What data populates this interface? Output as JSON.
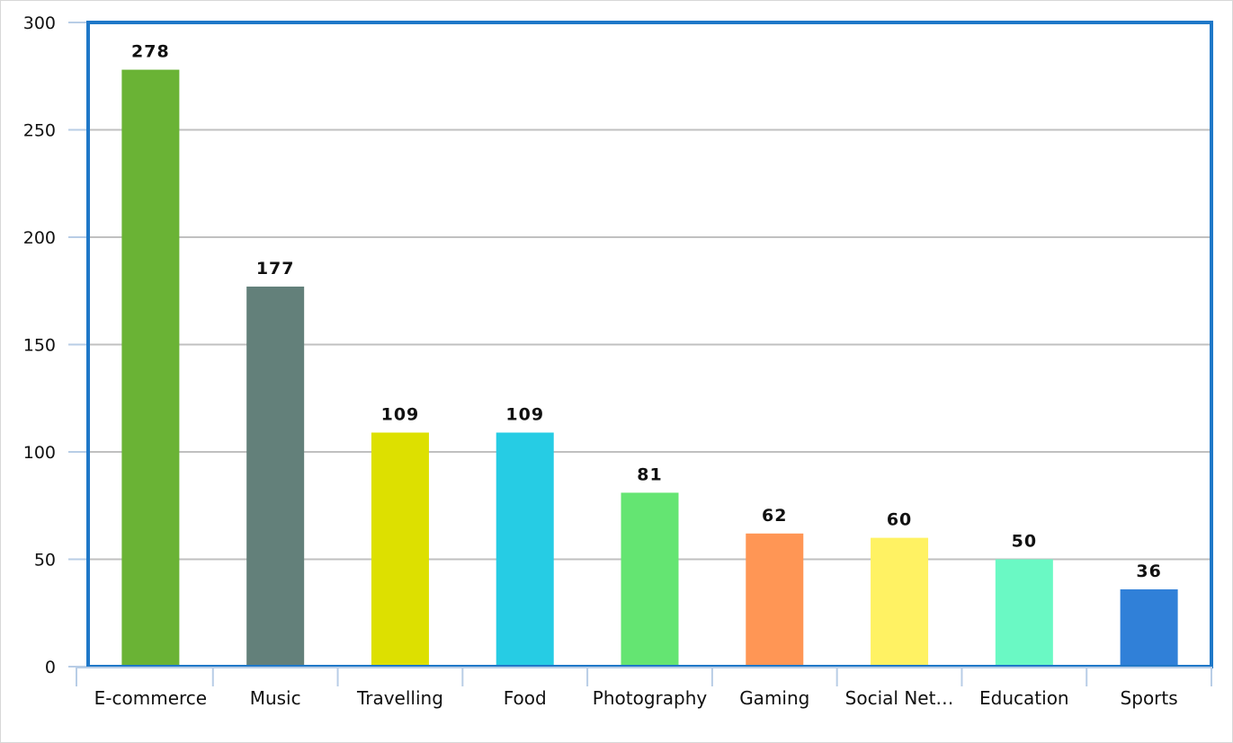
{
  "chart_data": {
    "type": "bar",
    "categories": [
      "E-commerce",
      "Music",
      "Travelling",
      "Food",
      "Photography",
      "Gaming",
      "Social Net…",
      "Education",
      "Sports"
    ],
    "values": [
      278,
      177,
      109,
      109,
      81,
      62,
      60,
      50,
      36
    ],
    "colors": [
      "#6ab335",
      "#63807a",
      "#dde000",
      "#26cce4",
      "#64e572",
      "#ff9655",
      "#fff263",
      "#6af9c4",
      "#3080d8"
    ],
    "yticks": [
      0,
      50,
      100,
      150,
      200,
      250,
      300
    ],
    "ylim": [
      0,
      300
    ],
    "grid": true,
    "title": "",
    "xlabel": "",
    "ylabel": "",
    "plot_border_color": "#1f78c8",
    "gridline_color": "#c0c0c0",
    "axis_color": "#b8cde6"
  }
}
